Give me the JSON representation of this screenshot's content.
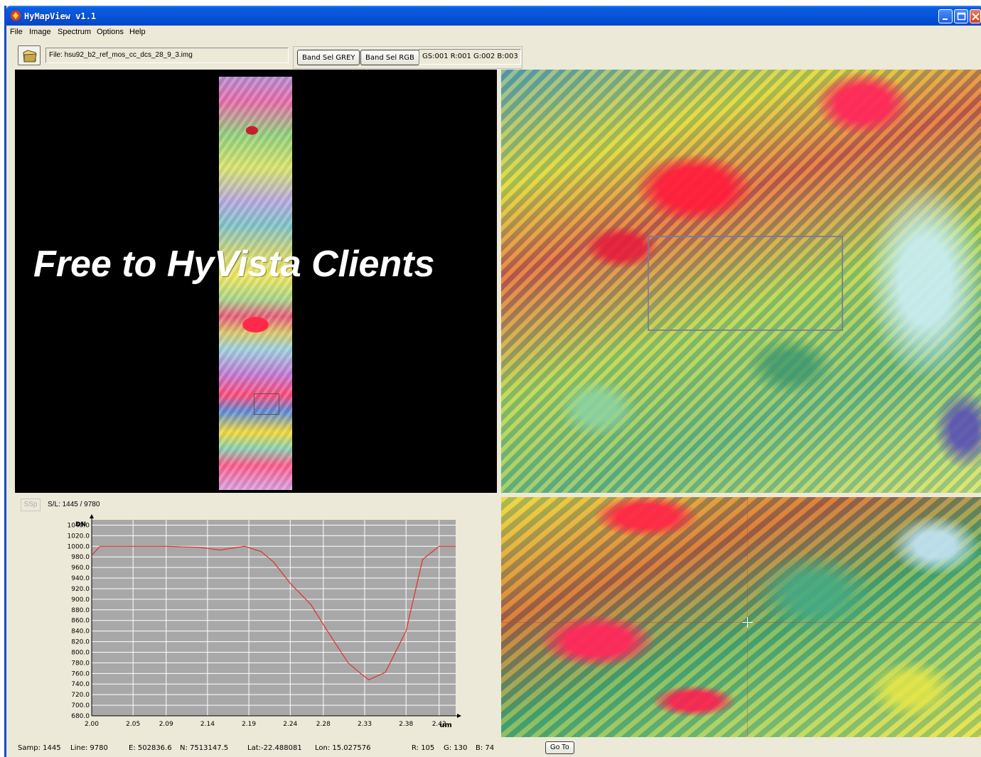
{
  "window": {
    "title": "HyMapView v1.1"
  },
  "menu": [
    "File",
    "Image",
    "Spectrum",
    "Options",
    "Help"
  ],
  "toolbar": {
    "file_label": "File: hsu92_b2_ref_mos_cc_dcs_28_9_3.img",
    "band_sel_grey": "Band Sel GREY",
    "band_sel_rgb": "Band Sel RGB",
    "band_readout": "GS:001  R:001 G:002 B:003"
  },
  "overview": {
    "watermark": "Free to HyVista Clients"
  },
  "spectrum_panel": {
    "ssp_label": "SSp",
    "sl_label": "S/L: 1445 /  9780"
  },
  "chart_data": {
    "type": "line",
    "xlabel": "um",
    "ylabel": "DN",
    "xlim": [
      2.0,
      2.44
    ],
    "ylim": [
      680.0,
      1050.0
    ],
    "x_ticks": [
      "2.00",
      "2.05",
      "2.09",
      "2.14",
      "2.19",
      "2.24",
      "2.28",
      "2.33",
      "2.38",
      "2.42"
    ],
    "y_ticks": [
      "1040.0",
      "1020.0",
      "1000.0",
      "980.0",
      "960.0",
      "940.0",
      "920.0",
      "900.0",
      "880.0",
      "860.0",
      "840.0",
      "820.0",
      "800.0",
      "780.0",
      "760.0",
      "740.0",
      "720.0",
      "700.0",
      "680.0"
    ],
    "grid": true,
    "series": [
      {
        "color": "#e0302a",
        "x": [
          2.0,
          2.01,
          2.05,
          2.09,
          2.13,
          2.155,
          2.185,
          2.205,
          2.22,
          2.24,
          2.265,
          2.285,
          2.31,
          2.325,
          2.335,
          2.355,
          2.38,
          2.4,
          2.42,
          2.44
        ],
        "y": [
          983,
          1000,
          1000,
          1000,
          998,
          993,
          1000,
          990,
          970,
          930,
          890,
          840,
          780,
          760,
          748,
          762,
          840,
          975,
          1000,
          1000
        ]
      }
    ]
  },
  "status": {
    "samp": "Samp:  1445",
    "line": "Line:  9780",
    "easting": "E: 502836.6",
    "northing": "N: 7513147.5",
    "lat": "Lat:-22.488081",
    "lon": "Lon: 15.027576",
    "r": "R:   105",
    "g": "G:   130",
    "b": "B:    74",
    "goto": "Go To"
  },
  "colors": {
    "titlebar": "#0552d8",
    "window_bg": "#ece9d8",
    "plot_bg": "#a8a8a8",
    "spectrum_line": "#e0302a"
  },
  "icons": [
    "app-icon",
    "minimize-icon",
    "maximize-icon",
    "close-icon",
    "open-folder-icon",
    "crosshair-cursor-icon"
  ]
}
